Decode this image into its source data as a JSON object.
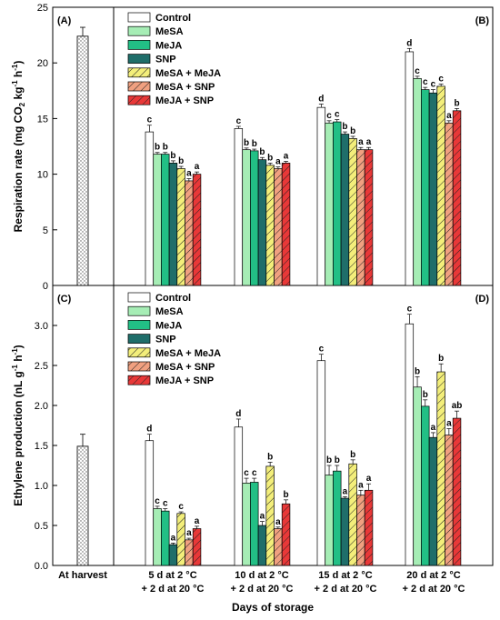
{
  "colors": {
    "control": "#ffffff",
    "mesa": "#a6edb5",
    "meja": "#22bf85",
    "snp": "#1f6e6a",
    "mesa_meja": "#f3ee7a",
    "mesa_snp": "#f0a080",
    "meja_snp": "#e83838"
  },
  "chart_data": [
    {
      "type": "bar",
      "panel": "(A)",
      "ylabel": "Respiration rate  (mg CO2 kg-1 h-1)",
      "ylim": [
        0,
        25
      ],
      "yticks": [
        "0",
        "5",
        "10",
        "15",
        "20",
        "25"
      ],
      "categories": [
        "At harvest"
      ],
      "values": [
        22.4
      ],
      "errors": [
        0.8
      ],
      "pattern": "dotted"
    },
    {
      "type": "bar",
      "panel": "(B)",
      "ylim": [
        0,
        25
      ],
      "categories": [
        "5 d at 2 °C + 2 d at 20 °C",
        "10 d at 2 °C + 2 d at 20 °C",
        "15 d at 2 °C + 2 d at 20 °C",
        "20 d at 2 °C + 2 d at 20 °C"
      ],
      "legend_position": "top-left",
      "series": [
        {
          "name": "Control",
          "values": [
            13.8,
            14.1,
            16.0,
            21.0
          ],
          "errors": [
            0.6,
            0.2,
            0.3,
            0.3
          ],
          "letters": [
            "c",
            "c",
            "d",
            "d"
          ]
        },
        {
          "name": "MeSA",
          "values": [
            11.8,
            12.2,
            14.6,
            18.6
          ],
          "errors": [
            0.15,
            0.15,
            0.2,
            0.2
          ],
          "letters": [
            "b",
            "b",
            "c",
            "c"
          ]
        },
        {
          "name": "MeJA",
          "values": [
            11.8,
            12.1,
            14.7,
            17.6
          ],
          "errors": [
            0.15,
            0.15,
            0.2,
            0.2
          ],
          "letters": [
            "b",
            "b",
            "c",
            "c"
          ]
        },
        {
          "name": "SNP",
          "values": [
            11.0,
            11.3,
            13.6,
            17.3
          ],
          "errors": [
            0.2,
            0.2,
            0.2,
            0.3
          ],
          "letters": [
            "b",
            "b",
            "b",
            "c"
          ]
        },
        {
          "name": "MeSA + MeJA",
          "values": [
            10.5,
            10.8,
            13.2,
            17.9
          ],
          "errors": [
            0.2,
            0.2,
            0.2,
            0.2
          ],
          "letters": [
            "b",
            "b",
            "b",
            "c"
          ]
        },
        {
          "name": "MeSA + SNP",
          "values": [
            9.4,
            10.5,
            12.2,
            14.6
          ],
          "errors": [
            0.2,
            0.15,
            0.2,
            0.2
          ],
          "letters": [
            "a",
            "a",
            "a",
            "a"
          ]
        },
        {
          "name": "MeJA + SNP",
          "values": [
            10.0,
            11.0,
            12.2,
            15.7
          ],
          "errors": [
            0.2,
            0.15,
            0.2,
            0.2
          ],
          "letters": [
            "a",
            "a",
            "a",
            "b"
          ]
        }
      ]
    },
    {
      "type": "bar",
      "panel": "(C)",
      "ylabel": "Ethylene production  (nL g-1 h-1)",
      "ylim": [
        0,
        3.5
      ],
      "yticks": [
        "0.0",
        "0.5",
        "1.0",
        "1.5",
        "2.0",
        "2.5",
        "3.0"
      ],
      "categories": [
        "At harvest"
      ],
      "values": [
        1.49
      ],
      "errors": [
        0.15
      ],
      "pattern": "dotted"
    },
    {
      "type": "bar",
      "panel": "(D)",
      "ylim": [
        0,
        3.5
      ],
      "categories": [
        "5 d at 2 °C + 2 d at 20 °C",
        "10 d at 2 °C + 2 d at 20 °C",
        "15 d at 2 °C + 2 d at 20 °C",
        "20 d at 2 °C + 2 d at 20 °C"
      ],
      "legend_position": "top-left",
      "series": [
        {
          "name": "Control",
          "values": [
            1.56,
            1.73,
            2.56,
            3.02
          ],
          "errors": [
            0.08,
            0.1,
            0.08,
            0.12
          ],
          "letters": [
            "d",
            "d",
            "c",
            "c"
          ]
        },
        {
          "name": "MeSA",
          "values": [
            0.71,
            1.03,
            1.13,
            2.23
          ],
          "errors": [
            0.03,
            0.06,
            0.12,
            0.13
          ],
          "letters": [
            "c",
            "c",
            "b",
            "b"
          ]
        },
        {
          "name": "MeJA",
          "values": [
            0.68,
            1.04,
            1.18,
            1.99
          ],
          "errors": [
            0.03,
            0.05,
            0.07,
            0.08
          ],
          "letters": [
            "c",
            "c",
            "b",
            "b"
          ]
        },
        {
          "name": "SNP",
          "values": [
            0.26,
            0.5,
            0.84,
            1.6
          ],
          "errors": [
            0.02,
            0.05,
            0.02,
            0.06
          ],
          "letters": [
            "a",
            "a",
            "a",
            "a"
          ]
        },
        {
          "name": "MeSA + MeJA",
          "values": [
            0.65,
            1.24,
            1.27,
            2.42
          ],
          "errors": [
            0.02,
            0.05,
            0.05,
            0.1
          ],
          "letters": [
            "c",
            "b",
            "b",
            "b"
          ]
        },
        {
          "name": "MeSA + SNP",
          "values": [
            0.32,
            0.46,
            0.88,
            1.63
          ],
          "errors": [
            0.02,
            0.02,
            0.06,
            0.08
          ],
          "letters": [
            "a",
            "a",
            "a",
            "a"
          ]
        },
        {
          "name": "MeJA + SNP",
          "values": [
            0.46,
            0.77,
            0.94,
            1.84
          ],
          "errors": [
            0.03,
            0.05,
            0.08,
            0.09
          ],
          "letters": [
            "a",
            "b",
            "a",
            "ab"
          ]
        }
      ]
    }
  ],
  "x_categories": [
    {
      "line1": "At harvest",
      "line2": ""
    },
    {
      "line1": "5 d at 2 °C",
      "line2": "+ 2 d at 20 °C"
    },
    {
      "line1": "10 d at 2 °C",
      "line2": "+ 2 d at 20 °C"
    },
    {
      "line1": "15 d at 2 °C",
      "line2": "+ 2 d at 20 °C"
    },
    {
      "line1": "20 d at 2 °C",
      "line2": "+ 2 d at 20 °C"
    }
  ],
  "xlabel": "Days of storage",
  "ylabel_top": {
    "main": "Respiration rate  (mg CO",
    "sub": "2",
    "mid": " kg",
    "sup1": "-1",
    "mid2": " h",
    "sup2": "-1",
    "end": ")"
  },
  "ylabel_bottom": {
    "main": "Ethylene production  (nL g",
    "sup1": "-1",
    "mid": " h",
    "sup2": "-1",
    "end": ")"
  }
}
